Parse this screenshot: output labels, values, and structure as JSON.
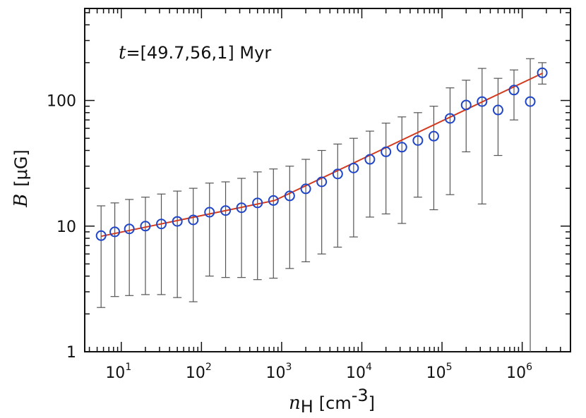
{
  "chart_data": {
    "type": "scatter",
    "xscale": "log",
    "yscale": "log",
    "xlim": [
      3.5,
      4000000
    ],
    "ylim": [
      1,
      540
    ],
    "xlabel": {
      "symbol": "n",
      "subscript": "H",
      "unit": "[cm",
      "unit_exp": "-3",
      "unit_close": "]"
    },
    "ylabel": {
      "symbol": "B",
      "unit": "[μG]"
    },
    "annotation": {
      "symbol": "t",
      "text": "=[49.7,56,1] Myr"
    },
    "x_ticks": [
      {
        "base": "10",
        "exp": "1",
        "value": 10
      },
      {
        "base": "10",
        "exp": "2",
        "value": 100
      },
      {
        "base": "10",
        "exp": "3",
        "value": 1000
      },
      {
        "base": "10",
        "exp": "4",
        "value": 10000
      },
      {
        "base": "10",
        "exp": "5",
        "value": 100000
      },
      {
        "base": "10",
        "exp": "6",
        "value": 1000000
      }
    ],
    "y_ticks": [
      {
        "label": "1",
        "value": 1
      },
      {
        "label": "10",
        "value": 10
      },
      {
        "label": "100",
        "value": 100
      }
    ],
    "marker_color": "#1f45c8",
    "fit_color": "#d23a1e",
    "errorbar_color": "#555555",
    "points": [
      {
        "x": 5.6,
        "y": 8.4,
        "lo": 2.25,
        "hi": 14.5
      },
      {
        "x": 8.3,
        "y": 9.0,
        "lo": 2.75,
        "hi": 15.3
      },
      {
        "x": 12.6,
        "y": 9.5,
        "lo": 2.8,
        "hi": 16.3
      },
      {
        "x": 20,
        "y": 10.0,
        "lo": 2.85,
        "hi": 17.0
      },
      {
        "x": 31.6,
        "y": 10.4,
        "lo": 2.85,
        "hi": 18.0
      },
      {
        "x": 50,
        "y": 10.9,
        "lo": 2.7,
        "hi": 19.0
      },
      {
        "x": 79,
        "y": 11.2,
        "lo": 2.5,
        "hi": 20.0
      },
      {
        "x": 126,
        "y": 12.9,
        "lo": 4.0,
        "hi": 22.0
      },
      {
        "x": 200,
        "y": 13.3,
        "lo": 3.9,
        "hi": 22.5
      },
      {
        "x": 316,
        "y": 14.0,
        "lo": 3.9,
        "hi": 24.0
      },
      {
        "x": 500,
        "y": 15.3,
        "lo": 3.75,
        "hi": 27.0
      },
      {
        "x": 790,
        "y": 16.0,
        "lo": 3.85,
        "hi": 28.5
      },
      {
        "x": 1260,
        "y": 17.4,
        "lo": 4.6,
        "hi": 30.0
      },
      {
        "x": 2000,
        "y": 19.8,
        "lo": 5.2,
        "hi": 34.0
      },
      {
        "x": 3160,
        "y": 22.5,
        "lo": 6.0,
        "hi": 40.0
      },
      {
        "x": 5000,
        "y": 26.0,
        "lo": 6.8,
        "hi": 45.0
      },
      {
        "x": 7900,
        "y": 29.0,
        "lo": 8.2,
        "hi": 50.0
      },
      {
        "x": 12600,
        "y": 34.0,
        "lo": 11.8,
        "hi": 57.0
      },
      {
        "x": 20000,
        "y": 39.0,
        "lo": 12.5,
        "hi": 66.0
      },
      {
        "x": 31600,
        "y": 42.5,
        "lo": 10.5,
        "hi": 74.0
      },
      {
        "x": 50000,
        "y": 48.0,
        "lo": 17.0,
        "hi": 80.0
      },
      {
        "x": 79000,
        "y": 52.0,
        "lo": 13.5,
        "hi": 90.0
      },
      {
        "x": 126000,
        "y": 72.0,
        "lo": 17.8,
        "hi": 126.0
      },
      {
        "x": 200000,
        "y": 92.0,
        "lo": 39.0,
        "hi": 145.0
      },
      {
        "x": 316000,
        "y": 98.0,
        "lo": 15.0,
        "hi": 180.0
      },
      {
        "x": 500000,
        "y": 84.0,
        "lo": 36.5,
        "hi": 150.0
      },
      {
        "x": 790000,
        "y": 121.0,
        "lo": 70.0,
        "hi": 175.0
      },
      {
        "x": 1260000,
        "y": 98.0,
        "lo": 1.0,
        "hi": 215.0
      },
      {
        "x": 1780000,
        "y": 166.0,
        "lo": 135.0,
        "hi": 200.0
      }
    ],
    "fit_lines": [
      {
        "x": [
          5.6,
          820
        ],
        "y": [
          8.3,
          16.0
        ]
      },
      {
        "x": [
          820,
          1800000
        ],
        "y": [
          16.0,
          165.0
        ]
      }
    ]
  }
}
